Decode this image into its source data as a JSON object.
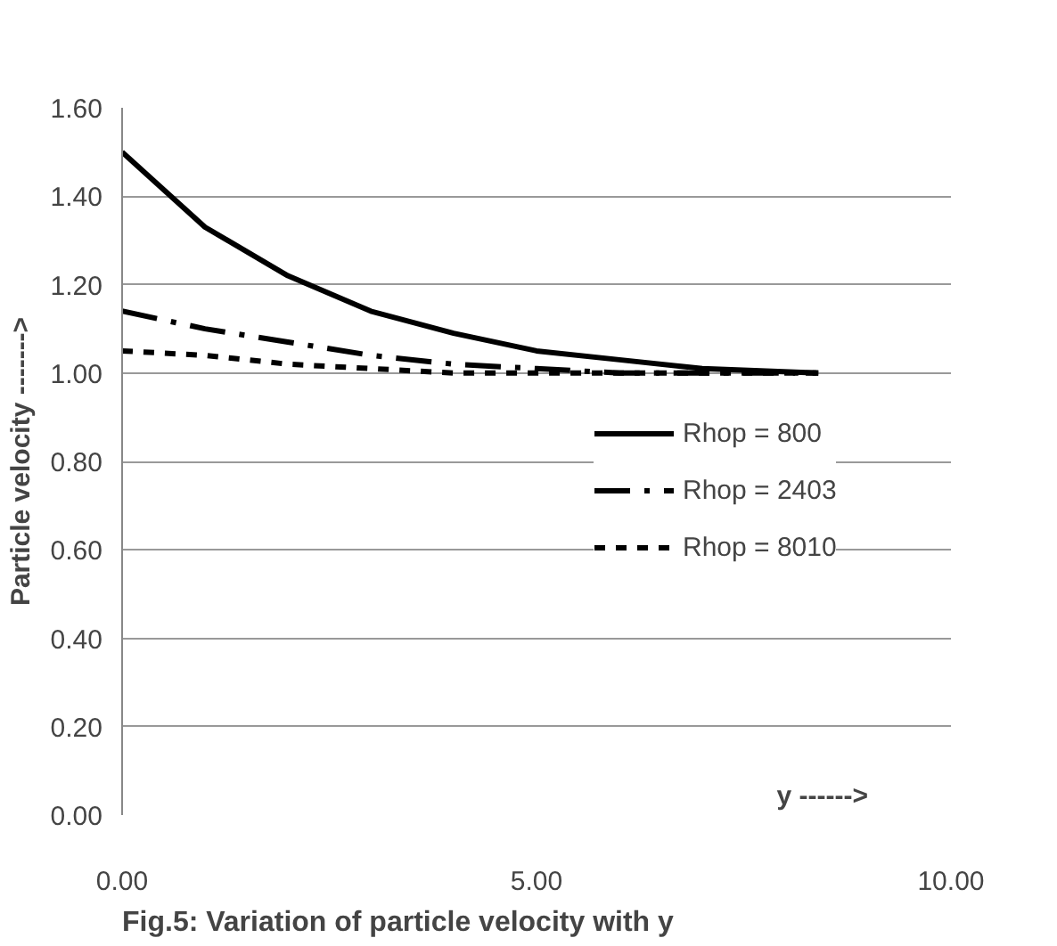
{
  "chart_data": {
    "type": "line",
    "title": "Fig.5: Variation of particle velocity with y",
    "xlabel": "y ------>",
    "ylabel": "Particle velocity ------->",
    "series": [
      {
        "name": "Rhop = 800",
        "color": "#000000",
        "line_style": "solid",
        "x": [
          0,
          1,
          2,
          3,
          4,
          5,
          6,
          7,
          8.4
        ],
        "values": [
          1.5,
          1.33,
          1.22,
          1.14,
          1.09,
          1.05,
          1.03,
          1.01,
          1.0
        ]
      },
      {
        "name": "Rhop = 2403",
        "color": "#000000",
        "line_style": "dashdot",
        "x": [
          0,
          1,
          2,
          3,
          4,
          5,
          6,
          8.4
        ],
        "values": [
          1.14,
          1.1,
          1.07,
          1.04,
          1.02,
          1.01,
          1.0,
          1.0
        ]
      },
      {
        "name": "Rhop = 8010",
        "color": "#000000",
        "line_style": "dashed",
        "x": [
          0,
          1,
          2,
          3,
          4,
          8.4
        ],
        "values": [
          1.05,
          1.04,
          1.02,
          1.01,
          1.0,
          1.0
        ]
      }
    ],
    "xlim": [
      0,
      10
    ],
    "xticks": [
      {
        "value": 0,
        "label": "0.00"
      },
      {
        "value": 5,
        "label": "5.00"
      },
      {
        "value": 10,
        "label": "10.00"
      }
    ],
    "ylim": [
      0,
      1.6
    ],
    "yticks": [
      {
        "value": 0,
        "label": "0.00"
      },
      {
        "value": 0.2,
        "label": "0.20"
      },
      {
        "value": 0.4,
        "label": "0.40"
      },
      {
        "value": 0.6,
        "label": "0.60"
      },
      {
        "value": 0.8,
        "label": "0.80"
      },
      {
        "value": 1.0,
        "label": "1.00"
      },
      {
        "value": 1.2,
        "label": "1.20"
      },
      {
        "value": 1.4,
        "label": "1.40"
      },
      {
        "value": 1.6,
        "label": "1.60"
      }
    ],
    "grid": "y",
    "legend": "right",
    "marker": "none"
  }
}
